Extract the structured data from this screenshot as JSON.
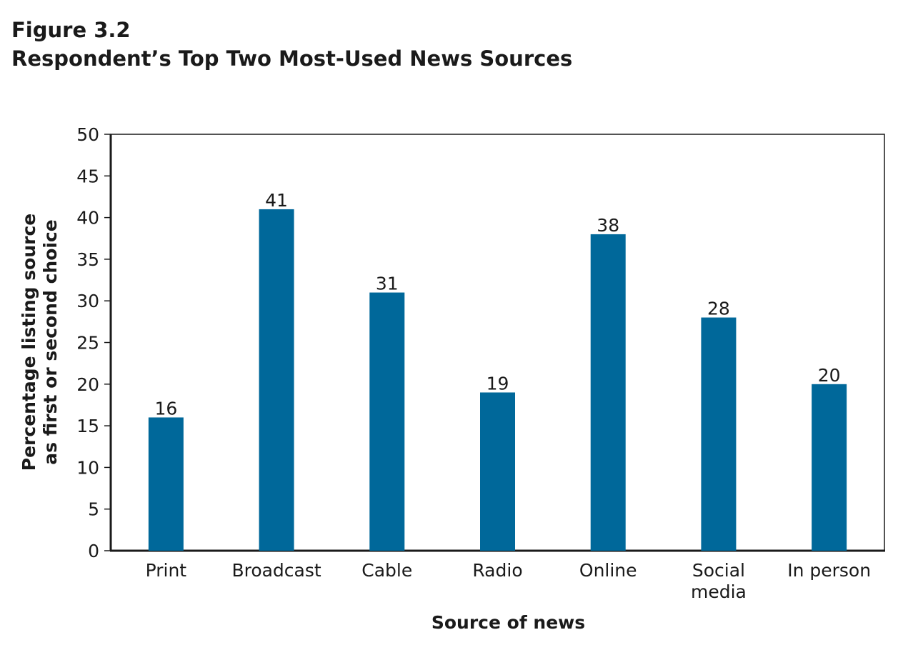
{
  "figure": {
    "label": "Figure 3.2",
    "title": "Respondent’s Top Two Most-Used News Sources"
  },
  "chart_data": {
    "type": "bar",
    "categories": [
      [
        "Print"
      ],
      [
        "Broadcast"
      ],
      [
        "Cable"
      ],
      [
        "Radio"
      ],
      [
        "Online"
      ],
      [
        "Social",
        "media"
      ],
      [
        "In person"
      ]
    ],
    "values": [
      16,
      41,
      31,
      19,
      38,
      28,
      20
    ],
    "data_labels": [
      "16",
      "41",
      "31",
      "19",
      "38",
      "28",
      "20"
    ],
    "xlabel": "Source of news",
    "ylabel": [
      "Percentage listing source",
      "as first or second choice"
    ],
    "ylim": [
      0,
      50
    ],
    "yticks": [
      0,
      5,
      10,
      15,
      20,
      25,
      30,
      35,
      40,
      45,
      50
    ],
    "bar_color": "#00689a",
    "grid": false,
    "legend": "none"
  }
}
